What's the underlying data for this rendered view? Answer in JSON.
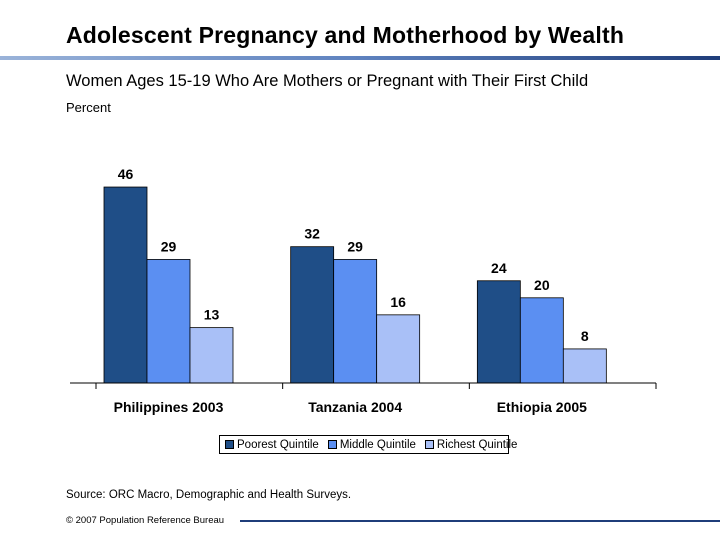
{
  "header": {
    "title": "Adolescent Pregnancy and Motherhood by Wealth",
    "subtitle": "Women Ages 15-19 Who Are Mothers or Pregnant with Their First Child",
    "unit": "Percent"
  },
  "colors": {
    "poorest": "#1f4e87",
    "middle": "#5b8ff2",
    "richest": "#a9c0f7",
    "rule": "#1f3d7a"
  },
  "chart_data": {
    "type": "bar",
    "title": "",
    "ylabel": "Percent",
    "categories": [
      "Philippines 2003",
      "Tanzania 2004",
      "Ethiopia 2005"
    ],
    "series": [
      {
        "name": "Poorest Quintile",
        "values": [
          46,
          32,
          24
        ]
      },
      {
        "name": "Middle Quintile",
        "values": [
          29,
          29,
          20
        ]
      },
      {
        "name": "Richest Quintile",
        "values": [
          13,
          16,
          8
        ]
      }
    ],
    "ylim": [
      0,
      46
    ],
    "grid": false,
    "legend": "bottom"
  },
  "footer": {
    "source": "Source: ORC Macro, Demographic and Health Surveys.",
    "copyright": "© 2007 Population Reference Bureau"
  }
}
